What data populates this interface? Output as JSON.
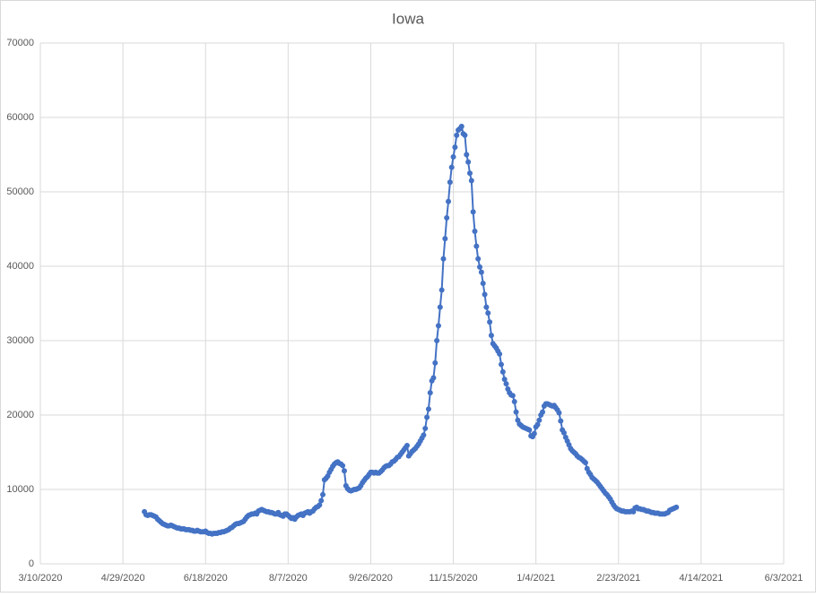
{
  "chart_data": {
    "type": "line",
    "title": "Iowa",
    "color": "#4472c4",
    "grid": true,
    "xlim": [
      "3/10/2020",
      "6/3/2021"
    ],
    "xticks": [
      "3/10/2020",
      "4/29/2020",
      "6/18/2020",
      "8/7/2020",
      "9/26/2020",
      "11/15/2020",
      "1/4/2021",
      "2/23/2021",
      "4/14/2021",
      "6/3/2021"
    ],
    "ylim": [
      0,
      70000
    ],
    "yticks": [
      0,
      10000,
      20000,
      30000,
      40000,
      50000,
      60000,
      70000
    ],
    "x": [
      "5/12/2020",
      "5/13/2020",
      "5/14/2020",
      "5/15/2020",
      "5/16/2020",
      "5/17/2020",
      "5/18/2020",
      "5/19/2020",
      "5/20/2020",
      "5/21/2020",
      "5/22/2020",
      "5/23/2020",
      "5/24/2020",
      "5/25/2020",
      "5/26/2020",
      "5/27/2020",
      "5/28/2020",
      "5/29/2020",
      "5/30/2020",
      "5/31/2020",
      "6/1/2020",
      "6/2/2020",
      "6/3/2020",
      "6/4/2020",
      "6/5/2020",
      "6/6/2020",
      "6/7/2020",
      "6/8/2020",
      "6/9/2020",
      "6/10/2020",
      "6/11/2020",
      "6/12/2020",
      "6/13/2020",
      "6/14/2020",
      "6/15/2020",
      "6/16/2020",
      "6/17/2020",
      "6/18/2020",
      "6/19/2020",
      "6/20/2020",
      "6/21/2020",
      "6/22/2020",
      "6/23/2020",
      "6/24/2020",
      "6/25/2020",
      "6/26/2020",
      "6/27/2020",
      "6/28/2020",
      "6/29/2020",
      "6/30/2020",
      "7/1/2020",
      "7/2/2020",
      "7/3/2020",
      "7/4/2020",
      "7/5/2020",
      "7/6/2020",
      "7/7/2020",
      "7/8/2020",
      "7/9/2020",
      "7/10/2020",
      "7/11/2020",
      "7/12/2020",
      "7/13/2020",
      "7/14/2020",
      "7/15/2020",
      "7/16/2020",
      "7/17/2020",
      "7/18/2020",
      "7/19/2020",
      "7/20/2020",
      "7/21/2020",
      "7/22/2020",
      "7/23/2020",
      "7/24/2020",
      "7/25/2020",
      "7/26/2020",
      "7/27/2020",
      "7/28/2020",
      "7/29/2020",
      "7/30/2020",
      "7/31/2020",
      "8/1/2020",
      "8/2/2020",
      "8/3/2020",
      "8/4/2020",
      "8/5/2020",
      "8/6/2020",
      "8/7/2020",
      "8/8/2020",
      "8/9/2020",
      "8/10/2020",
      "8/11/2020",
      "8/12/2020",
      "8/13/2020",
      "8/14/2020",
      "8/15/2020",
      "8/16/2020",
      "8/17/2020",
      "8/18/2020",
      "8/19/2020",
      "8/20/2020",
      "8/21/2020",
      "8/22/2020",
      "8/23/2020",
      "8/24/2020",
      "8/25/2020",
      "8/26/2020",
      "8/27/2020",
      "8/28/2020",
      "8/29/2020",
      "8/30/2020",
      "8/31/2020",
      "9/1/2020",
      "9/2/2020",
      "9/3/2020",
      "9/4/2020",
      "9/5/2020",
      "9/6/2020",
      "9/7/2020",
      "9/8/2020",
      "9/9/2020",
      "9/10/2020",
      "9/11/2020",
      "9/12/2020",
      "9/13/2020",
      "9/14/2020",
      "9/15/2020",
      "9/16/2020",
      "9/17/2020",
      "9/18/2020",
      "9/19/2020",
      "9/20/2020",
      "9/21/2020",
      "9/22/2020",
      "9/23/2020",
      "9/24/2020",
      "9/25/2020",
      "9/26/2020",
      "9/27/2020",
      "9/28/2020",
      "9/29/2020",
      "9/30/2020",
      "10/1/2020",
      "10/2/2020",
      "10/3/2020",
      "10/4/2020",
      "10/5/2020",
      "10/6/2020",
      "10/7/2020",
      "10/8/2020",
      "10/9/2020",
      "10/10/2020",
      "10/11/2020",
      "10/12/2020",
      "10/13/2020",
      "10/14/2020",
      "10/15/2020",
      "10/16/2020",
      "10/17/2020",
      "10/18/2020",
      "10/19/2020",
      "10/20/2020",
      "10/21/2020",
      "10/22/2020",
      "10/23/2020",
      "10/24/2020",
      "10/25/2020",
      "10/26/2020",
      "10/27/2020",
      "10/28/2020",
      "10/29/2020",
      "10/30/2020",
      "10/31/2020",
      "11/1/2020",
      "11/2/2020",
      "11/3/2020",
      "11/4/2020",
      "11/5/2020",
      "11/6/2020",
      "11/7/2020",
      "11/8/2020",
      "11/9/2020",
      "11/10/2020",
      "11/11/2020",
      "11/12/2020",
      "11/13/2020",
      "11/14/2020",
      "11/15/2020",
      "11/16/2020",
      "11/17/2020",
      "11/18/2020",
      "11/19/2020",
      "11/20/2020",
      "11/21/2020",
      "11/22/2020",
      "11/23/2020",
      "11/24/2020",
      "11/25/2020",
      "11/26/2020",
      "11/27/2020",
      "11/28/2020",
      "11/29/2020",
      "11/30/2020",
      "12/1/2020",
      "12/2/2020",
      "12/3/2020",
      "12/4/2020",
      "12/5/2020",
      "12/6/2020",
      "12/7/2020",
      "12/8/2020",
      "12/9/2020",
      "12/10/2020",
      "12/11/2020",
      "12/12/2020",
      "12/13/2020",
      "12/14/2020",
      "12/15/2020",
      "12/16/2020",
      "12/17/2020",
      "12/18/2020",
      "12/19/2020",
      "12/20/2020",
      "12/21/2020",
      "12/22/2020",
      "12/23/2020",
      "12/24/2020",
      "12/25/2020",
      "12/26/2020",
      "12/27/2020",
      "12/28/2020",
      "12/29/2020",
      "12/30/2020",
      "12/31/2020",
      "1/1/2021",
      "1/2/2021",
      "1/3/2021",
      "1/4/2021",
      "1/5/2021",
      "1/6/2021",
      "1/7/2021",
      "1/8/2021",
      "1/9/2021",
      "1/10/2021",
      "1/11/2021",
      "1/12/2021",
      "1/13/2021",
      "1/14/2021",
      "1/15/2021",
      "1/16/2021",
      "1/17/2021",
      "1/18/2021",
      "1/19/2021",
      "1/20/2021",
      "1/21/2021",
      "1/22/2021",
      "1/23/2021",
      "1/24/2021",
      "1/25/2021",
      "1/26/2021",
      "1/27/2021",
      "1/28/2021",
      "1/29/2021",
      "1/30/2021",
      "1/31/2021",
      "2/1/2021",
      "2/2/2021",
      "2/3/2021",
      "2/4/2021",
      "2/5/2021",
      "2/6/2021",
      "2/7/2021",
      "2/8/2021",
      "2/9/2021",
      "2/10/2021",
      "2/11/2021",
      "2/12/2021",
      "2/13/2021",
      "2/14/2021",
      "2/15/2021",
      "2/16/2021",
      "2/17/2021",
      "2/18/2021",
      "2/19/2021",
      "2/20/2021",
      "2/21/2021",
      "2/22/2021",
      "2/23/2021",
      "2/24/2021",
      "2/25/2021",
      "2/26/2021",
      "2/27/2021",
      "2/28/2021",
      "3/1/2021",
      "3/2/2021",
      "3/3/2021",
      "3/4/2021",
      "3/5/2021",
      "3/6/2021",
      "3/7/2021",
      "3/8/2021",
      "3/9/2021",
      "3/10/2021",
      "3/11/2021",
      "3/12/2021",
      "3/13/2021",
      "3/14/2021",
      "3/15/2021",
      "3/16/2021",
      "3/17/2021",
      "3/18/2021",
      "3/19/2021",
      "3/20/2021",
      "3/21/2021",
      "3/22/2021",
      "3/23/2021",
      "3/24/2021",
      "3/25/2021",
      "3/26/2021",
      "3/27/2021",
      "3/28/2021",
      "3/29/2021",
      "3/30/2021"
    ],
    "values": [
      7000,
      6600,
      6500,
      6600,
      6600,
      6500,
      6400,
      6300,
      6000,
      5800,
      5600,
      5400,
      5300,
      5200,
      5100,
      5100,
      5200,
      5100,
      5000,
      4900,
      4800,
      4800,
      4700,
      4700,
      4700,
      4600,
      4600,
      4600,
      4500,
      4500,
      4400,
      4400,
      4500,
      4400,
      4300,
      4300,
      4300,
      4400,
      4200,
      4100,
      4100,
      4000,
      4100,
      4100,
      4100,
      4200,
      4200,
      4300,
      4300,
      4400,
      4500,
      4600,
      4800,
      4900,
      5100,
      5300,
      5400,
      5400,
      5500,
      5600,
      5700,
      6000,
      6300,
      6500,
      6600,
      6700,
      6700,
      6800,
      6700,
      7100,
      7200,
      7300,
      7200,
      7100,
      7000,
      7000,
      6900,
      6900,
      6800,
      6700,
      6700,
      6900,
      6600,
      6500,
      6400,
      6700,
      6700,
      6500,
      6300,
      6100,
      6200,
      6000,
      6300,
      6500,
      6600,
      6700,
      6500,
      6800,
      6900,
      7000,
      6800,
      7000,
      7100,
      7400,
      7600,
      7700,
      7900,
      8500,
      9300,
      11300,
      11500,
      11800,
      12300,
      12700,
      13100,
      13400,
      13600,
      13700,
      13500,
      13400,
      13200,
      12500,
      10500,
      10100,
      9900,
      9800,
      9900,
      10000,
      10000,
      10100,
      10200,
      10500,
      10900,
      11200,
      11500,
      11700,
      12000,
      12300,
      12300,
      12200,
      12300,
      12200,
      12200,
      12400,
      12600,
      12900,
      13100,
      13200,
      13200,
      13400,
      13700,
      13800,
      14000,
      14300,
      14400,
      14700,
      15000,
      15300,
      15600,
      15900,
      14500,
      14800,
      15100,
      15300,
      15500,
      15800,
      16100,
      16500,
      16900,
      17300,
      18200,
      19700,
      20800,
      23000,
      24600,
      25000,
      27000,
      30000,
      32000,
      34500,
      36800,
      41000,
      43700,
      46500,
      48700,
      51300,
      53300,
      54700,
      56000,
      57600,
      58300,
      58500,
      58800,
      57800,
      57600,
      55000,
      54000,
      52500,
      51500,
      47300,
      44700,
      42700,
      41000,
      39900,
      39200,
      37700,
      36200,
      34500,
      33700,
      32500,
      30700,
      29600,
      29300,
      29000,
      28600,
      28200,
      26800,
      25800,
      24800,
      24200,
      23500,
      23000,
      22700,
      22600,
      21800,
      20400,
      19300,
      18800,
      18600,
      18400,
      18300,
      18200,
      18100,
      18000,
      17200,
      17100,
      17500,
      18400,
      18700,
      19300,
      20000,
      20400,
      21200,
      21500,
      21500,
      21400,
      21300,
      21200,
      21300,
      21000,
      20700,
      20300,
      19200,
      18000,
      17600,
      17000,
      16500,
      16000,
      15500,
      15200,
      15000,
      14800,
      14500,
      14300,
      14200,
      14000,
      13800,
      13600,
      12800,
      12300,
      12000,
      11600,
      11400,
      11200,
      11000,
      10700,
      10400,
      10100,
      9800,
      9500,
      9300,
      9000,
      8700,
      8300,
      7900,
      7600,
      7400,
      7300,
      7200,
      7100,
      7100,
      7000,
      7000,
      7000,
      7000,
      7100,
      7000,
      7500,
      7600,
      7400,
      7400,
      7300,
      7300,
      7200,
      7100,
      7100,
      7000,
      6900,
      6900,
      6800,
      6800,
      6800,
      6700,
      6700,
      6700,
      6700,
      6800,
      6900,
      7200,
      7300,
      7400,
      7500,
      7600
    ]
  }
}
